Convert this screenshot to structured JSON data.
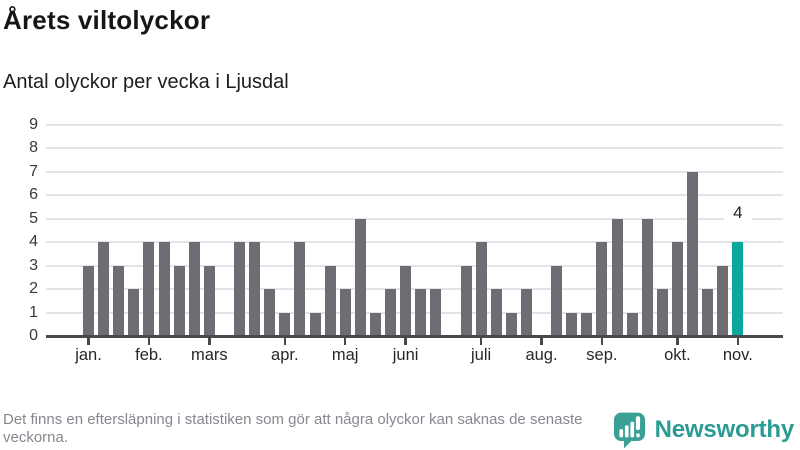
{
  "header": {
    "title": "Årets viltolyckor",
    "subtitle": "Antal olyckor per vecka i Ljusdal"
  },
  "chart_data": {
    "type": "bar",
    "title": "Årets viltolyckor",
    "subtitle": "Antal olyckor per vecka i Ljusdal",
    "x_unit": "week",
    "values": [
      3,
      4,
      3,
      2,
      4,
      4,
      3,
      4,
      3,
      0,
      4,
      4,
      2,
      1,
      4,
      1,
      3,
      2,
      5,
      1,
      2,
      3,
      2,
      2,
      0,
      3,
      4,
      2,
      1,
      2,
      0,
      3,
      1,
      1,
      4,
      5,
      1,
      5,
      2,
      4,
      7,
      2,
      3,
      4
    ],
    "month_ticks": [
      {
        "label": "jan.",
        "week_index": 0
      },
      {
        "label": "feb.",
        "week_index": 4
      },
      {
        "label": "mars",
        "week_index": 8
      },
      {
        "label": "apr.",
        "week_index": 13
      },
      {
        "label": "maj",
        "week_index": 17
      },
      {
        "label": "juni",
        "week_index": 21
      },
      {
        "label": "juli",
        "week_index": 26
      },
      {
        "label": "aug.",
        "week_index": 30
      },
      {
        "label": "sep.",
        "week_index": 34
      },
      {
        "label": "okt.",
        "week_index": 39
      },
      {
        "label": "nov.",
        "week_index": 43
      }
    ],
    "y_ticks": [
      0,
      1,
      2,
      3,
      4,
      5,
      6,
      7,
      8,
      9
    ],
    "ylim": [
      0,
      9
    ],
    "grid": true,
    "highlight_last_bar": true,
    "last_value_label": "4",
    "colors": {
      "bar": "#6d6d74",
      "highlight": "#0aa79e",
      "grid": "#e4e4e8",
      "axis": "#48484d",
      "y_label": "#38383d",
      "x_label": "#27272b",
      "annotation": "#222222"
    }
  },
  "footer": {
    "note": "Det finns en eftersläpning i statistiken som gör att några olyckor kan saknas de senaste veckorna.",
    "logo_text": "Newsworthy",
    "logo_color": "#2b9c93"
  }
}
